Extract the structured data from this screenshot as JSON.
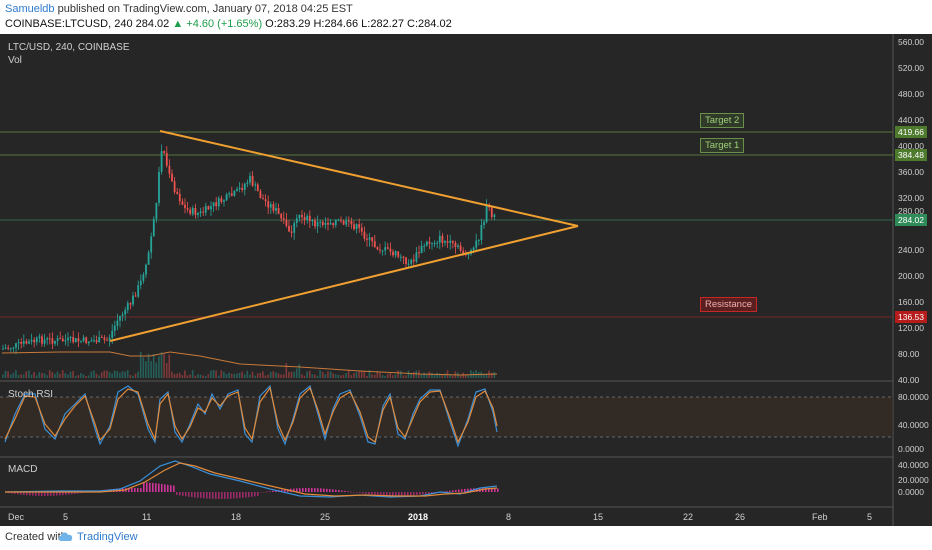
{
  "header": {
    "author": "Samueldb",
    "published": " published on TradingView.com, January 07, 2018 04:25 EST",
    "symbol_line": "COINBASE:LTCUSD, 240  284.02 ",
    "change": "▲ +4.60 (+1.65%)",
    "ohlc": " O:283.29 H:284.66 L:282.27 C:284.02"
  },
  "main_pane": {
    "title": "LTC/USD, 240, COINBASE",
    "indicator": "Vol"
  },
  "rsi_pane": {
    "title": "Stoch RSI"
  },
  "macd_pane": {
    "title": "MACD"
  },
  "colors": {
    "up": "#26a69a",
    "down": "#ef5350",
    "triangle": "#f0a030",
    "target": "#8fbf6a",
    "resistance": "#c62828"
  },
  "price_axis": {
    "ticks": [
      "560.00",
      "520.00",
      "480.00",
      "440.00",
      "400.00",
      "360.00",
      "320.00",
      "280.00",
      "240.00",
      "200.00",
      "160.00",
      "120.00",
      "80.00",
      "40.00"
    ],
    "tags": {
      "target2": "419.66",
      "target1": "384.48",
      "current": "284.02",
      "resistance": "136.53"
    }
  },
  "rsi_axis": {
    "ticks": [
      "80.0000",
      "40.0000",
      "0.0000"
    ]
  },
  "macd_axis": {
    "ticks": [
      "40.0000",
      "20.0000",
      "0.0000"
    ]
  },
  "annotations": {
    "target2": "Target 2",
    "target1": "Target 1",
    "resistance": "Resistance"
  },
  "time_axis": {
    "ticks": [
      "Dec",
      "5",
      "11",
      "18",
      "25",
      "2018",
      "8",
      "15",
      "22",
      "26",
      "Feb",
      "5"
    ]
  },
  "footer": {
    "created_with": "Created with",
    "brand": "TradingView"
  }
}
